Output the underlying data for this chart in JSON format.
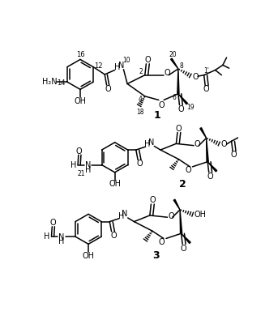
{
  "bg_color": "#ffffff",
  "line_color": "#000000",
  "figsize": [
    3.27,
    4.0
  ],
  "dpi": 100,
  "struct1_label": "1",
  "struct2_label": "2",
  "struct3_label": "3"
}
